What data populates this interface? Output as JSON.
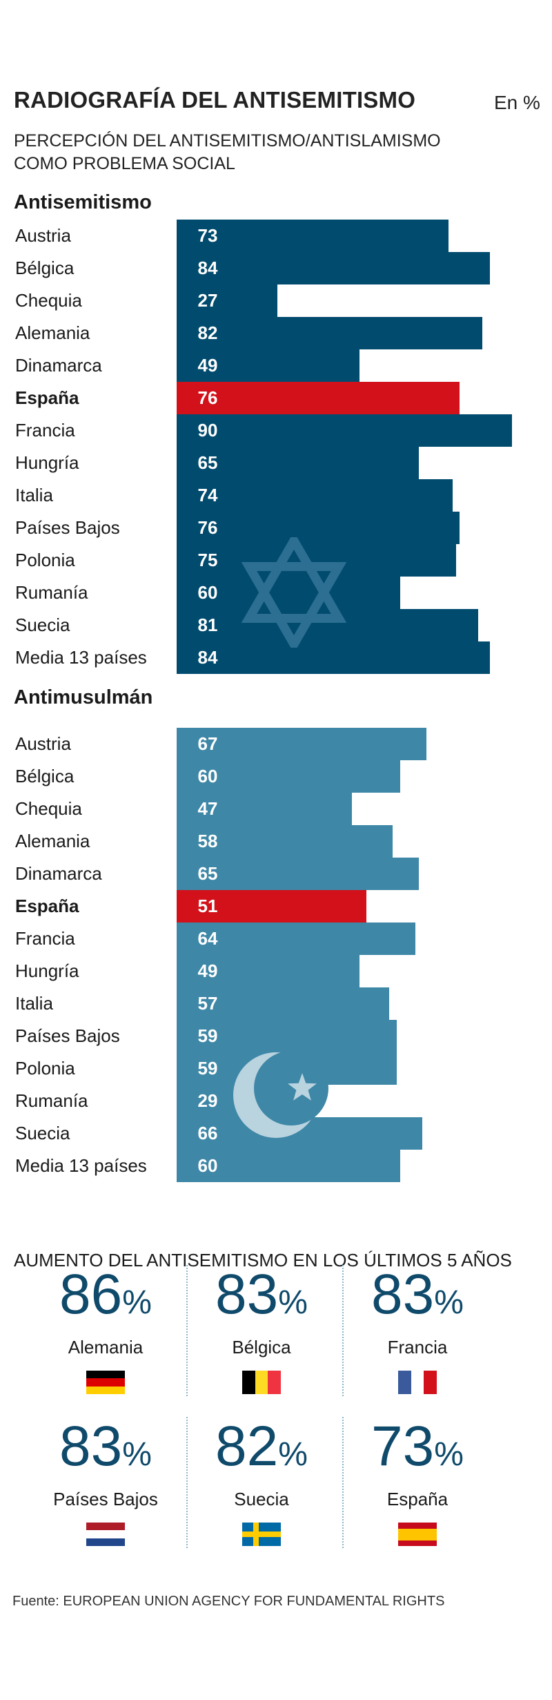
{
  "header": {
    "title": "RADIOGRAFÍA DEL ANTISEMITISMO",
    "unit": "En %",
    "subtitle_line1": "PERCEPCIÓN DEL ANTISEMITISMO/ANTISLAMISMO",
    "subtitle_line2": "COMO PROBLEMA SOCIAL"
  },
  "chart_data": [
    {
      "type": "bar",
      "orientation": "horizontal",
      "title": "Antisemitismo",
      "categories": [
        "Austria",
        "Bélgica",
        "Chequia",
        "Alemania",
        "Dinamarca",
        "España",
        "Francia",
        "Hungría",
        "Italia",
        "Países Bajos",
        "Polonia",
        "Rumanía",
        "Suecia",
        "Media 13 países"
      ],
      "values": [
        73,
        84,
        27,
        82,
        49,
        76,
        90,
        65,
        74,
        76,
        75,
        60,
        81,
        84
      ],
      "highlight": "España",
      "bar_color": "#014b6e",
      "highlight_color": "#d2111b",
      "icon": "star-of-david-icon",
      "xlim": [
        0,
        100
      ]
    },
    {
      "type": "bar",
      "orientation": "horizontal",
      "title": "Antimusulmán",
      "categories": [
        "Austria",
        "Bélgica",
        "Chequia",
        "Alemania",
        "Dinamarca",
        "España",
        "Francia",
        "Hungría",
        "Italia",
        "Países Bajos",
        "Polonia",
        "Rumanía",
        "Suecia",
        "Media 13 países"
      ],
      "values": [
        67,
        60,
        47,
        58,
        65,
        51,
        64,
        49,
        57,
        59,
        59,
        29,
        66,
        60
      ],
      "highlight": "España",
      "bar_color": "#3e87a7",
      "highlight_color": "#d2111b",
      "icon": "crescent-star-icon",
      "xlim": [
        0,
        100
      ]
    }
  ],
  "stats": {
    "title": "AUMENTO DEL ANTISEMITISMO EN LOS ÚLTIMOS 5 AÑOS",
    "pct_symbol": "%",
    "items": [
      {
        "value": "86",
        "country": "Alemania",
        "flag_icon": "flag-germany-icon"
      },
      {
        "value": "83",
        "country": "Bélgica",
        "flag_icon": "flag-belgium-icon"
      },
      {
        "value": "83",
        "country": "Francia",
        "flag_icon": "flag-france-icon"
      },
      {
        "value": "83",
        "country": "Países Bajos",
        "flag_icon": "flag-netherlands-icon"
      },
      {
        "value": "82",
        "country": "Suecia",
        "flag_icon": "flag-sweden-icon"
      },
      {
        "value": "73",
        "country": "España",
        "flag_icon": "flag-spain-icon"
      }
    ]
  },
  "source": "Fuente: EUROPEAN UNION AGENCY FOR FUNDAMENTAL RIGHTS"
}
